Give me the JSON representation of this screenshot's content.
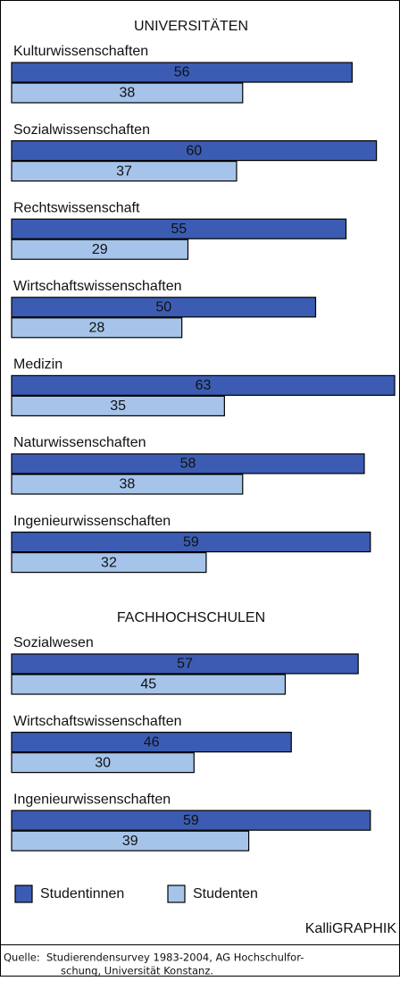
{
  "chart_data": [
    {
      "type": "bar",
      "title": "UNIVERSITÄTEN",
      "categories": [
        "Kulturwissenschaften",
        "Sozialwissenschaften",
        "Rechtswissenschaft",
        "Wirtschaftswissenschaften",
        "Medizin",
        "Naturwissenschaften",
        "Ingenieurwissenschaften"
      ],
      "series": [
        {
          "name": "Studentinnen",
          "color": "#3b5cb2",
          "values": [
            56,
            60,
            55,
            50,
            63,
            58,
            59
          ]
        },
        {
          "name": "Studenten",
          "color": "#a6c4ea",
          "values": [
            38,
            37,
            29,
            28,
            35,
            38,
            32
          ]
        }
      ]
    },
    {
      "type": "bar",
      "title": "FACHHOCHSCHULEN",
      "categories": [
        "Sozialwesen",
        "Wirtschaftswissenschaften",
        "Ingenieurwissenschaften"
      ],
      "series": [
        {
          "name": "Studentinnen",
          "color": "#3b5cb2",
          "values": [
            57,
            46,
            59
          ]
        },
        {
          "name": "Studenten",
          "color": "#a6c4ea",
          "values": [
            45,
            30,
            39
          ]
        }
      ]
    }
  ],
  "credit": "KalliGRAPHIK",
  "source_label": "Quelle:",
  "source_lines": [
    "Studierendensurvey 1983-2004, AG Hochschulfor-",
    "schung, Universität Konstanz."
  ]
}
